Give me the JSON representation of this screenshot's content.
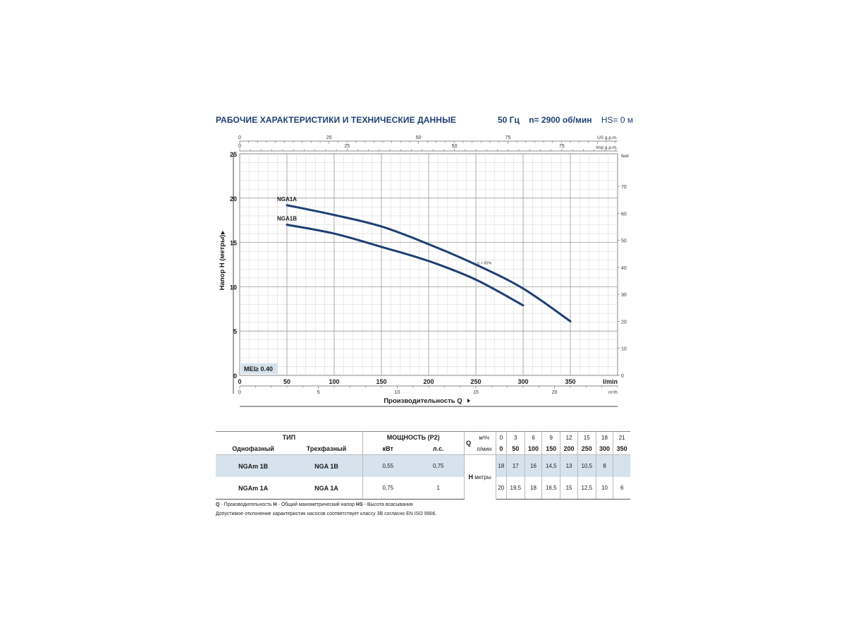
{
  "header": {
    "title": "РАБОЧИЕ ХАРАКТЕРИСТИКИ И ТЕХНИЧЕСКИЕ ДАННЫЕ",
    "freq": "50 Гц",
    "speed": "n= 2900 об/мин",
    "hs": "HS= 0 м"
  },
  "chart_data": {
    "type": "line",
    "xlabel": "Производительность Q",
    "ylabel": "Напор H (метры)",
    "x_unit": "l/min",
    "xlim": [
      0,
      400
    ],
    "ylim": [
      0,
      25
    ],
    "grid": true,
    "x_ticks": [
      "0",
      "50",
      "100",
      "150",
      "200",
      "250",
      "300",
      "350"
    ],
    "y_ticks": [
      "0",
      "5",
      "10",
      "15",
      "20",
      "25"
    ],
    "secondary_axes": {
      "us_gpm": {
        "label": "US g.p.m.",
        "ticks": [
          "0",
          "25",
          "50",
          "75"
        ]
      },
      "imp_gpm": {
        "label": "Imp g.p.m.",
        "ticks": [
          "0",
          "25",
          "50",
          "75"
        ]
      },
      "feet": {
        "label": "feet",
        "ticks": [
          "0",
          "10",
          "20",
          "30",
          "40",
          "50",
          "60",
          "70"
        ]
      },
      "m3h": {
        "label": "m³/h",
        "ticks": [
          "0",
          "5",
          "10",
          "15",
          "20"
        ]
      }
    },
    "series": [
      {
        "name": "NGA1A",
        "x": [
          50,
          100,
          150,
          200,
          250,
          300,
          350
        ],
        "y": [
          19.2,
          18.1,
          16.8,
          14.8,
          12.5,
          9.8,
          6.1
        ]
      },
      {
        "name": "NGA1B",
        "x": [
          50,
          100,
          150,
          200,
          250,
          300
        ],
        "y": [
          17.0,
          16.0,
          14.5,
          12.9,
          10.8,
          7.9
        ]
      }
    ],
    "annotations": [
      {
        "text": "η = 65%",
        "x": 250,
        "y": 12.6
      },
      {
        "text": "MEI≥ 0.40"
      }
    ]
  },
  "table": {
    "col_type": "ТИП",
    "col_power": "МОЩНОСТЬ (P2)",
    "single_phase": "Однофазный",
    "three_phase": "Трехфазный",
    "kw": "кВт",
    "hp": "л.с.",
    "q_letter": "Q",
    "m3h_label": "м³/ч",
    "lmin_label": "л/мин",
    "h_letter": "H",
    "h_unit": "метры",
    "q_m3h": [
      "0",
      "3",
      "6",
      "9",
      "12",
      "15",
      "18",
      "21"
    ],
    "q_lmin": [
      "0",
      "50",
      "100",
      "150",
      "200",
      "250",
      "300",
      "350"
    ],
    "rows": [
      {
        "single": "NGAm 1B",
        "three": "NGA 1B",
        "kw": "0,55",
        "hp": "0,75",
        "h": [
          "18",
          "17",
          "16",
          "14,5",
          "13",
          "10,5",
          "8",
          ""
        ]
      },
      {
        "single": "NGAm 1A",
        "three": "NGA 1A",
        "kw": "0,75",
        "hp": "1",
        "h": [
          "20",
          "19,5",
          "18",
          "16,5",
          "15",
          "12,5",
          "10",
          "6"
        ]
      }
    ]
  },
  "footnotes": {
    "q_abbr": "Q",
    "q_text": " - Производительность ",
    "h_abbr": "H",
    "h_text": " - Общий манометрический напор ",
    "hs_abbr": "HS",
    "hs_text": " - Высота всасывания",
    "tolerance": "Допустимое отклонение характеристик насосов соответствует классу 3B согласно EN ISO 9906."
  },
  "colors": {
    "curve": "#1f3f73",
    "title": "#1f3f73",
    "mei_box": "#d7e3ec"
  }
}
